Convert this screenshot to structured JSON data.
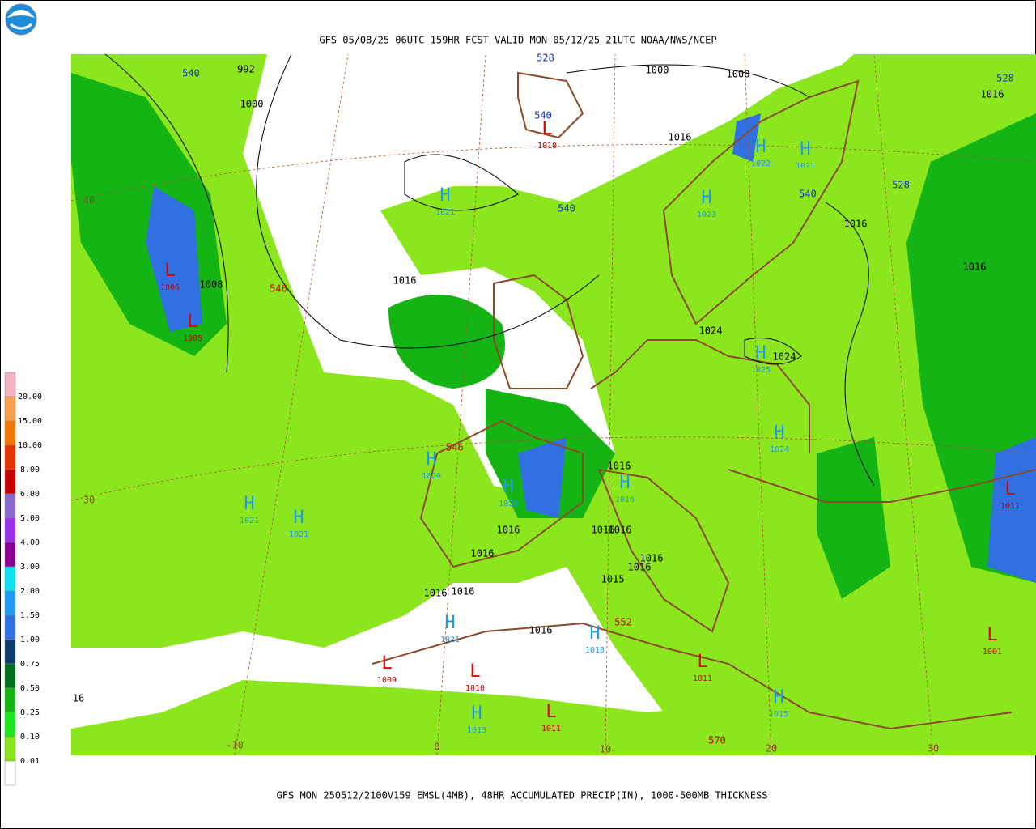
{
  "header": {
    "title": "GFS 05/08/25 06UTC 159HR FCST VALID MON 05/12/25 21UTC NOAA/NWS/NCEP"
  },
  "footer": {
    "caption": "GFS MON 250512/2100V159 EMSL(4MB), 48HR ACCUMULATED PRECIP(IN), 1000-500MB THICKNESS"
  },
  "legend": {
    "items": [
      {
        "label": "20.00",
        "color": "#f5b4c4"
      },
      {
        "label": "15.00",
        "color": "#f5a050"
      },
      {
        "label": "10.00",
        "color": "#f07800"
      },
      {
        "label": "8.00",
        "color": "#e83000"
      },
      {
        "label": "6.00",
        "color": "#c80000"
      },
      {
        "label": "5.00",
        "color": "#8a6ac8"
      },
      {
        "label": "4.00",
        "color": "#9a30e8"
      },
      {
        "label": "3.00",
        "color": "#8a0090"
      },
      {
        "label": "2.00",
        "color": "#10e0f0"
      },
      {
        "label": "1.50",
        "color": "#1e9af0"
      },
      {
        "label": "1.00",
        "color": "#3070e0"
      },
      {
        "label": "0.75",
        "color": "#0c3c6e"
      },
      {
        "label": "0.50",
        "color": "#006e1e"
      },
      {
        "label": "0.25",
        "color": "#14b414"
      },
      {
        "label": "0.10",
        "color": "#1ee61e"
      },
      {
        "label": "0.01",
        "color": "#8ce61e"
      },
      {
        "label": null,
        "color": "#ffffff"
      }
    ]
  },
  "centers": [
    {
      "symbol": "H",
      "pressure": "1021"
    },
    {
      "symbol": "L",
      "pressure": "1006"
    },
    {
      "symbol": "L",
      "pressure": "1005"
    },
    {
      "symbol": "L",
      "pressure": "1010"
    },
    {
      "symbol": "H",
      "pressure": "1023"
    },
    {
      "symbol": "H",
      "pressure": "1022"
    },
    {
      "symbol": "H",
      "pressure": "1021"
    },
    {
      "symbol": "H",
      "pressure": "1025"
    },
    {
      "symbol": "H",
      "pressure": "1024"
    },
    {
      "symbol": "H",
      "pressure": "1021"
    },
    {
      "symbol": "H",
      "pressure": "1021"
    },
    {
      "symbol": "H",
      "pressure": "1020"
    },
    {
      "symbol": "H",
      "pressure": "1020"
    },
    {
      "symbol": "H",
      "pressure": "1016"
    },
    {
      "symbol": "H",
      "pressure": "1021"
    },
    {
      "symbol": "H",
      "pressure": "1018"
    },
    {
      "symbol": "L",
      "pressure": "1009"
    },
    {
      "symbol": "L",
      "pressure": "1010"
    },
    {
      "symbol": "L",
      "pressure": "1011"
    },
    {
      "symbol": "H",
      "pressure": "1013"
    },
    {
      "symbol": "L",
      "pressure": "1011"
    },
    {
      "symbol": "H",
      "pressure": "1015"
    },
    {
      "symbol": "L",
      "pressure": "1011"
    },
    {
      "symbol": "L",
      "pressure": "1001"
    }
  ],
  "isobar_labels": [
    "992",
    "1000",
    "1000",
    "1008",
    "1016",
    "1016",
    "1008",
    "1016",
    "1016",
    "1016",
    "1024",
    "1024",
    "1016",
    "1016",
    "1016",
    "1016",
    "1016",
    "1016",
    "1016",
    "1016",
    "1016",
    "1015",
    "1016",
    "16"
  ],
  "thickness_labels_cold": [
    "528",
    "540",
    "540",
    "540",
    "540",
    "528",
    "528"
  ],
  "thickness_labels_warm": [
    "546",
    "546",
    "552",
    "570"
  ],
  "grid_labels": [
    "40",
    "30",
    "-10",
    "0",
    "10",
    "20",
    "30"
  ]
}
